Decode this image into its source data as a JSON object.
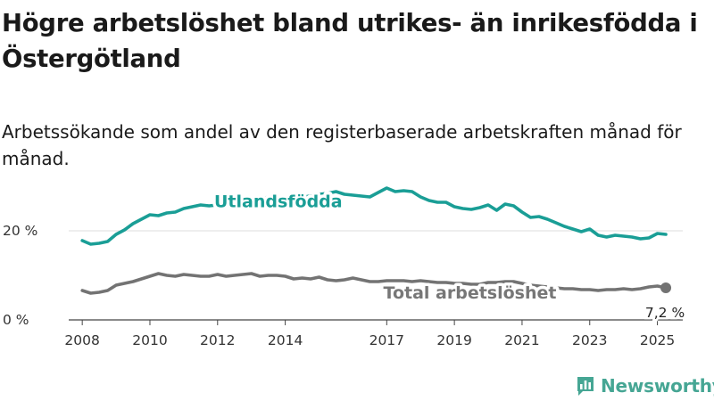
{
  "title": "Högre arbetslöshet bland utrikes- än inrikesfödda i Östergötland",
  "subtitle": "Arbetssökande som andel av den registerbaserade arbetskraften månad för månad.",
  "brand": {
    "name": "Newsworthy",
    "icon": "newsworthy-bar-chart-logo"
  },
  "colors": {
    "utlandsfodda": "#1a9e96",
    "total": "#737373",
    "axis": "#444444",
    "grid": "#dddddd"
  },
  "chart_data": {
    "type": "line",
    "title": "Högre arbetslöshet bland utrikes- än inrikesfödda i Östergötland",
    "subtitle": "Arbetssökande som andel av den registerbaserade arbetskraften månad för månad.",
    "x_ticks": [
      "2008",
      "2010",
      "2012",
      "2014",
      "2017",
      "2019",
      "2021",
      "2023",
      "2025"
    ],
    "x_tick_values": [
      2008,
      2010,
      2012,
      2014,
      2017,
      2019,
      2021,
      2023,
      2025
    ],
    "y_ticks": [
      "0 %",
      "20 %"
    ],
    "y_tick_values": [
      0,
      20
    ],
    "xlim": [
      2007.6,
      2025.75
    ],
    "ylim": [
      0,
      32
    ],
    "grid": "horizontal",
    "series": [
      {
        "name": "Utlandsfödda",
        "label": "Utlandsfödda",
        "x": [
          2008.0,
          2008.25,
          2008.5,
          2008.75,
          2009.0,
          2009.25,
          2009.5,
          2009.75,
          2010.0,
          2010.25,
          2010.5,
          2010.75,
          2011.0,
          2011.25,
          2011.5,
          2011.75,
          2012.0,
          2012.25,
          2012.5,
          2012.75,
          2013.0,
          2013.25,
          2013.5,
          2013.75,
          2014.0,
          2014.25,
          2014.5,
          2014.75,
          2015.0,
          2015.25,
          2015.5,
          2015.75,
          2016.0,
          2016.25,
          2016.5,
          2016.75,
          2017.0,
          2017.25,
          2017.5,
          2017.75,
          2018.0,
          2018.25,
          2018.5,
          2018.75,
          2019.0,
          2019.25,
          2019.5,
          2019.75,
          2020.0,
          2020.25,
          2020.5,
          2020.75,
          2021.0,
          2021.25,
          2021.5,
          2021.75,
          2022.0,
          2022.25,
          2022.5,
          2022.75,
          2023.0,
          2023.25,
          2023.5,
          2023.75,
          2024.0,
          2024.25,
          2024.5,
          2024.75,
          2025.0,
          2025.25
        ],
        "y": [
          17.8,
          17.0,
          17.2,
          17.6,
          19.2,
          20.2,
          21.6,
          22.6,
          23.6,
          23.4,
          24.0,
          24.2,
          25.0,
          25.4,
          25.8,
          25.6,
          25.8,
          26.2,
          26.6,
          26.6,
          27.0,
          27.0,
          27.6,
          27.4,
          27.2,
          27.4,
          27.6,
          27.8,
          28.2,
          28.4,
          28.8,
          28.2,
          28.0,
          27.8,
          27.6,
          28.6,
          29.6,
          28.8,
          29.0,
          28.8,
          27.6,
          26.8,
          26.4,
          26.4,
          25.4,
          25.0,
          24.8,
          25.2,
          25.8,
          24.6,
          26.0,
          25.6,
          24.2,
          23.0,
          23.2,
          22.6,
          21.8,
          21.0,
          20.4,
          19.8,
          20.4,
          19.0,
          18.6,
          19.0,
          18.8,
          18.6,
          18.2,
          18.4,
          19.4,
          19.2
        ]
      },
      {
        "name": "Total arbetslöshet",
        "label": "Total arbetslöshet",
        "x": [
          2008.0,
          2008.25,
          2008.5,
          2008.75,
          2009.0,
          2009.25,
          2009.5,
          2009.75,
          2010.0,
          2010.25,
          2010.5,
          2010.75,
          2011.0,
          2011.25,
          2011.5,
          2011.75,
          2012.0,
          2012.25,
          2012.5,
          2012.75,
          2013.0,
          2013.25,
          2013.5,
          2013.75,
          2014.0,
          2014.25,
          2014.5,
          2014.75,
          2015.0,
          2015.25,
          2015.5,
          2015.75,
          2016.0,
          2016.25,
          2016.5,
          2016.75,
          2017.0,
          2017.25,
          2017.5,
          2017.75,
          2018.0,
          2018.25,
          2018.5,
          2018.75,
          2019.0,
          2019.25,
          2019.5,
          2019.75,
          2020.0,
          2020.25,
          2020.5,
          2020.75,
          2021.0,
          2021.25,
          2021.5,
          2021.75,
          2022.0,
          2022.25,
          2022.5,
          2022.75,
          2023.0,
          2023.25,
          2023.5,
          2023.75,
          2024.0,
          2024.25,
          2024.5,
          2024.75,
          2025.0,
          2025.25
        ],
        "y": [
          6.6,
          6.0,
          6.2,
          6.6,
          7.8,
          8.2,
          8.6,
          9.2,
          9.8,
          10.4,
          10.0,
          9.8,
          10.2,
          10.0,
          9.8,
          9.8,
          10.2,
          9.8,
          10.0,
          10.2,
          10.4,
          9.8,
          10.0,
          10.0,
          9.8,
          9.2,
          9.4,
          9.2,
          9.6,
          9.0,
          8.8,
          9.0,
          9.4,
          9.0,
          8.6,
          8.6,
          8.8,
          8.8,
          8.8,
          8.6,
          8.8,
          8.6,
          8.4,
          8.4,
          8.2,
          8.2,
          8.0,
          8.0,
          8.4,
          8.4,
          8.6,
          8.6,
          8.2,
          7.8,
          7.6,
          7.4,
          7.2,
          7.0,
          7.0,
          6.8,
          6.8,
          6.6,
          6.8,
          6.8,
          7.0,
          6.8,
          7.0,
          7.4,
          7.6,
          7.2
        ]
      }
    ],
    "annotations": [
      {
        "series": "Total arbetslöshet",
        "x": 2025.25,
        "y": 7.2,
        "text": "7,2 %"
      }
    ]
  }
}
